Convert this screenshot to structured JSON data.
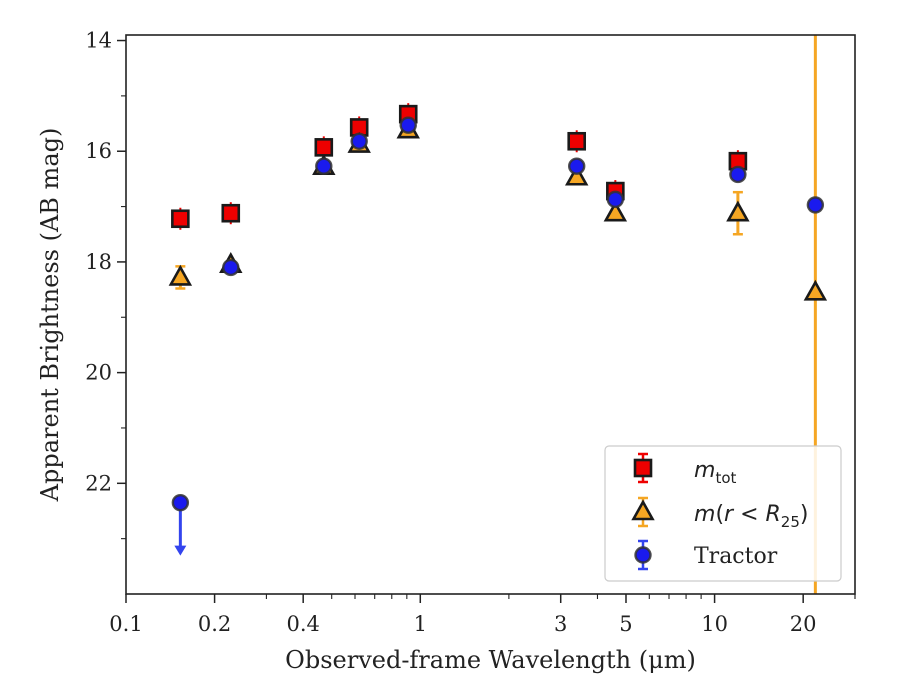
{
  "chart_data": {
    "type": "scatter",
    "xlabel": "Observed-frame Wavelength (μm)",
    "ylabel": "Apparent Brightness (AB mag)",
    "x_scale": "log",
    "xlim": [
      0.1,
      30
    ],
    "ylim": [
      24.0,
      13.9
    ],
    "y_inverted": true,
    "x_tick_labels": [
      "0.1",
      "0.2",
      "0.4",
      "1",
      "3",
      "5",
      "10",
      "20"
    ],
    "x_tick_values": [
      0.1,
      0.2,
      0.4,
      1,
      3,
      5,
      10,
      20
    ],
    "y_tick_labels": [
      "14",
      "16",
      "18",
      "20",
      "22"
    ],
    "y_tick_values": [
      14,
      16,
      18,
      20,
      22
    ],
    "grid": false,
    "legend_position": "lower-right",
    "legend": [
      "m_tot",
      "m(r < R_25)",
      "Tractor"
    ],
    "series": [
      {
        "name": "m_tot",
        "marker": "square",
        "color": "#ee0000",
        "errbar_color": "#ee0000",
        "points": [
          {
            "x": 0.153,
            "y": 17.22
          },
          {
            "x": 0.227,
            "y": 17.12
          },
          {
            "x": 0.47,
            "y": 15.93
          },
          {
            "x": 0.62,
            "y": 15.57
          },
          {
            "x": 0.91,
            "y": 15.33
          },
          {
            "x": 3.4,
            "y": 15.82
          },
          {
            "x": 4.6,
            "y": 16.72
          },
          {
            "x": 12.0,
            "y": 16.18
          }
        ]
      },
      {
        "name": "m(r < R_25)",
        "marker": "triangle",
        "color": "#f5a623",
        "errbar_color": "#f5a623",
        "points": [
          {
            "x": 0.153,
            "y": 18.28,
            "err": 0.2
          },
          {
            "x": 0.227,
            "y": 18.05
          },
          {
            "x": 0.47,
            "y": 16.28
          },
          {
            "x": 0.62,
            "y": 15.88
          },
          {
            "x": 0.91,
            "y": 15.62
          },
          {
            "x": 3.4,
            "y": 16.47
          },
          {
            "x": 4.6,
            "y": 17.12
          },
          {
            "x": 12.0,
            "y": 17.12,
            "err": 0.38
          },
          {
            "x": 22.0,
            "y": 18.55,
            "err": 50
          }
        ]
      },
      {
        "name": "Tractor",
        "marker": "circle",
        "color": "#1a1aee",
        "errbar_color": "#3344ee",
        "points": [
          {
            "x": 0.153,
            "y": 22.35,
            "upper_limit": true
          },
          {
            "x": 0.227,
            "y": 18.1
          },
          {
            "x": 0.47,
            "y": 16.27
          },
          {
            "x": 0.62,
            "y": 15.82
          },
          {
            "x": 0.91,
            "y": 15.53
          },
          {
            "x": 3.4,
            "y": 16.27
          },
          {
            "x": 4.6,
            "y": 16.87
          },
          {
            "x": 12.0,
            "y": 16.42
          },
          {
            "x": 22.0,
            "y": 16.97
          }
        ]
      }
    ]
  }
}
